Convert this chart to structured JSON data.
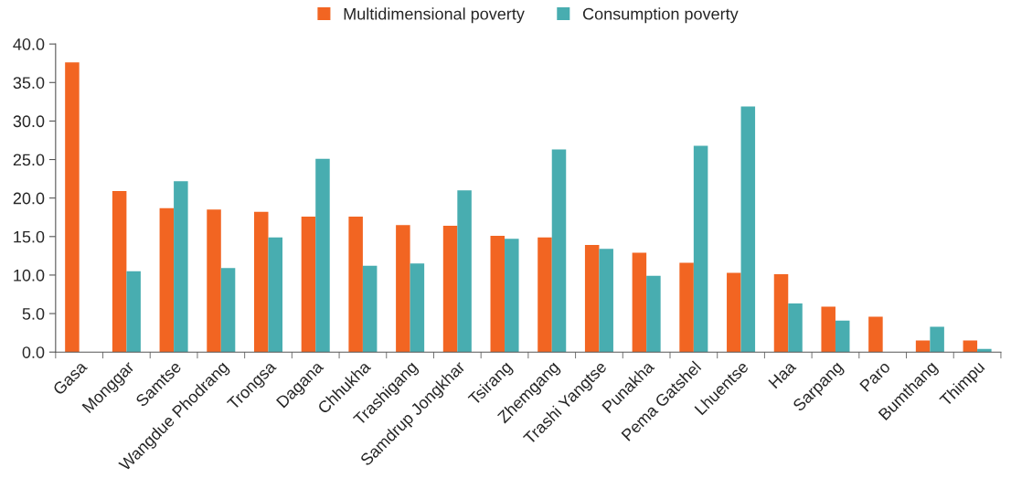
{
  "chart_data": {
    "type": "bar",
    "categories": [
      "Gasa",
      "Monggar",
      "Samtse",
      "Wangdue Phodrang",
      "Trongsa",
      "Dagana",
      "Chhukha",
      "Trashigang",
      "Samdrup Jongkhar",
      "Tsirang",
      "Zhemgang",
      "Trashi Yangtse",
      "Punakha",
      "Pema Gatshel",
      "Lhuentse",
      "Haa",
      "Sarpang",
      "Paro",
      "Bumthang",
      "Thimpu"
    ],
    "series": [
      {
        "name": "Multidimensional poverty",
        "color": "#f26522",
        "values": [
          37.6,
          20.9,
          18.7,
          18.5,
          18.2,
          17.6,
          17.6,
          16.5,
          16.4,
          15.1,
          14.9,
          13.9,
          12.9,
          11.6,
          10.3,
          10.1,
          5.9,
          4.6,
          1.5,
          1.5
        ]
      },
      {
        "name": "Consumption poverty",
        "color": "#48adb0",
        "values": [
          null,
          10.5,
          22.2,
          10.9,
          14.9,
          25.1,
          11.2,
          11.5,
          21.0,
          14.7,
          26.3,
          13.4,
          9.9,
          26.8,
          31.9,
          6.3,
          4.1,
          null,
          3.3,
          0.4
        ]
      }
    ],
    "ylim": [
      0,
      40
    ],
    "yticks": [
      {
        "value": 0,
        "label": "0.0"
      },
      {
        "value": 5,
        "label": "5.0"
      },
      {
        "value": 10,
        "label": "10.0"
      },
      {
        "value": 15,
        "label": "15.0"
      },
      {
        "value": 20,
        "label": "20.0"
      },
      {
        "value": 25,
        "label": "25.0"
      },
      {
        "value": 30,
        "label": "30.0"
      },
      {
        "value": 35,
        "label": "35.0"
      },
      {
        "value": 40,
        "label": "40.0"
      }
    ],
    "grid": false,
    "legend": "top"
  }
}
